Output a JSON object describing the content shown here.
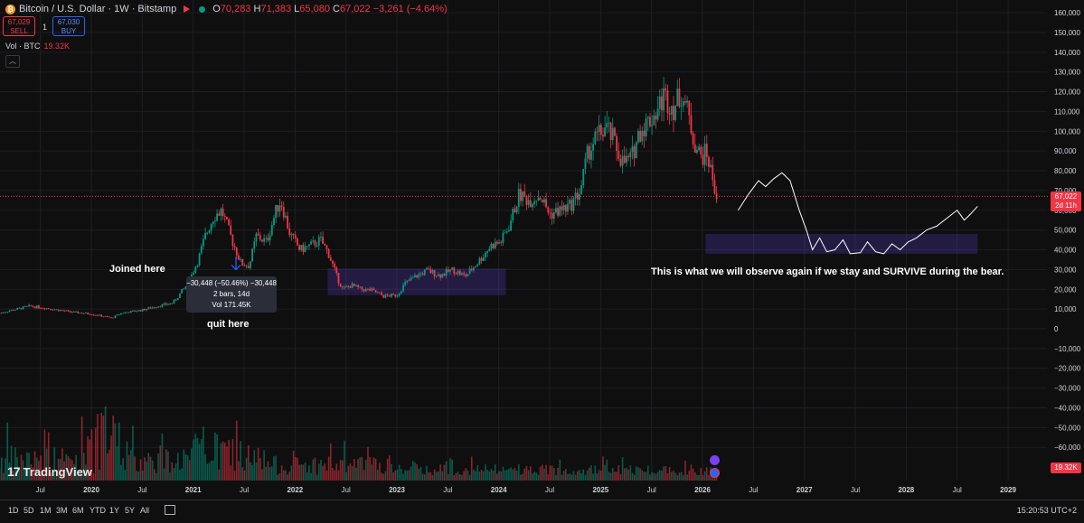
{
  "header": {
    "symbol_title": "Bitcoin / U.S. Dollar · 1W · Bitstamp",
    "open_label": "O",
    "open": "70,283",
    "high_label": "H",
    "high": "71,383",
    "low_label": "L",
    "low": "65,080",
    "close_label": "C",
    "close": "67,022",
    "change": "−3,261 (−4.64%)"
  },
  "trade": {
    "sell_price": "67,029",
    "sell_label": "SELL",
    "spread": "1",
    "buy_price": "67,030",
    "buy_label": "BUY"
  },
  "volume_legend": {
    "label": "Vol · BTC",
    "value": "19.32K"
  },
  "annotations": {
    "joined": "Joined here",
    "quit": "quit here",
    "observe": "This is what we will observe again if we stay and SURVIVE during the bear."
  },
  "measure_tooltip": {
    "line1": "−30,448 (−50.46%) −30,448",
    "line2": "2 bars, 14d",
    "line3": "Vol 171.45K"
  },
  "price_tag": {
    "price": "67,022",
    "countdown": "2d 11h"
  },
  "volume_tag": "19.32K",
  "brand": "TradingView",
  "bottom_bar": {
    "timeframes": [
      "1D",
      "5D",
      "1M",
      "3M",
      "6M",
      "YTD",
      "1Y",
      "5Y",
      "All"
    ],
    "clock": "15:20:53 UTC+2"
  },
  "colors": {
    "up": "#089981",
    "down": "#f23645",
    "accent": "#2962ff",
    "background": "#0f0f0f"
  },
  "chart_data": {
    "type": "candlestick",
    "interval": "1W",
    "ylim": [
      -70000,
      165000
    ],
    "y_ticks": [
      160000,
      150000,
      140000,
      130000,
      120000,
      110000,
      100000,
      90000,
      80000,
      70000,
      60000,
      50000,
      40000,
      30000,
      20000,
      10000,
      0,
      -10000,
      -20000,
      -30000,
      -40000,
      -50000,
      -60000
    ],
    "y_tick_labels": [
      "160,000",
      "150,000",
      "140,000",
      "130,000",
      "120,000",
      "110,000",
      "100,000",
      "90,000",
      "80,000",
      "70,000",
      "60,000",
      "50,000",
      "40,000",
      "30,000",
      "20,000",
      "10,000",
      "0",
      "−10,000",
      "−20,000",
      "−30,000",
      "−40,000",
      "−50,000",
      "−60,000"
    ],
    "x_ticks": [
      2019.5,
      2020,
      2020.5,
      2021,
      2021.5,
      2022,
      2022.5,
      2023,
      2023.5,
      2024,
      2024.5,
      2025,
      2025.5,
      2026,
      2026.5,
      2027,
      2027.5,
      2028,
      2028.5,
      2029
    ],
    "x_tick_labels": [
      "Jul",
      "2020",
      "Jul",
      "2021",
      "Jul",
      "2022",
      "Jul",
      "2023",
      "Jul",
      "2024",
      "Jul",
      "2025",
      "Jul",
      "2026",
      "Jul",
      "2027",
      "Jul",
      "2028",
      "Jul",
      "2029"
    ],
    "xlim": [
      2019.1,
      2029.6
    ],
    "grid": true,
    "price_path": [
      [
        2019.1,
        8000
      ],
      [
        2019.4,
        11500
      ],
      [
        2019.55,
        10500
      ],
      [
        2019.8,
        8500
      ],
      [
        2020.0,
        7500
      ],
      [
        2020.2,
        5500
      ],
      [
        2020.3,
        8000
      ],
      [
        2020.5,
        9500
      ],
      [
        2020.65,
        11500
      ],
      [
        2020.8,
        13000
      ],
      [
        2020.95,
        23000
      ],
      [
        2021.05,
        35000
      ],
      [
        2021.12,
        47000
      ],
      [
        2021.2,
        57000
      ],
      [
        2021.28,
        60000
      ],
      [
        2021.38,
        45000
      ],
      [
        2021.47,
        33000
      ],
      [
        2021.55,
        32000
      ],
      [
        2021.62,
        47000
      ],
      [
        2021.72,
        44000
      ],
      [
        2021.82,
        61000
      ],
      [
        2021.86,
        65000
      ],
      [
        2021.95,
        48000
      ],
      [
        2022.05,
        40000
      ],
      [
        2022.15,
        42000
      ],
      [
        2022.25,
        45000
      ],
      [
        2022.33,
        38000
      ],
      [
        2022.42,
        25000
      ],
      [
        2022.47,
        20000
      ],
      [
        2022.55,
        22000
      ],
      [
        2022.65,
        20000
      ],
      [
        2022.75,
        19500
      ],
      [
        2022.87,
        16500
      ],
      [
        2023.0,
        17000
      ],
      [
        2023.08,
        23000
      ],
      [
        2023.2,
        27000
      ],
      [
        2023.3,
        29500
      ],
      [
        2023.42,
        27000
      ],
      [
        2023.55,
        30000
      ],
      [
        2023.67,
        26500
      ],
      [
        2023.8,
        34000
      ],
      [
        2023.92,
        42000
      ],
      [
        2024.02,
        44000
      ],
      [
        2024.1,
        52000
      ],
      [
        2024.2,
        68000
      ],
      [
        2024.3,
        65000
      ],
      [
        2024.4,
        68000
      ],
      [
        2024.5,
        58000
      ],
      [
        2024.6,
        60000
      ],
      [
        2024.7,
        62000
      ],
      [
        2024.8,
        70000
      ],
      [
        2024.88,
        90000
      ],
      [
        2024.95,
        96000
      ],
      [
        2025.05,
        102000
      ],
      [
        2025.12,
        96000
      ],
      [
        2025.22,
        84000
      ],
      [
        2025.3,
        86000
      ],
      [
        2025.38,
        100000
      ],
      [
        2025.47,
        105000
      ],
      [
        2025.55,
        110000
      ],
      [
        2025.62,
        118000
      ],
      [
        2025.72,
        112000
      ],
      [
        2025.8,
        120000
      ],
      [
        2025.85,
        110000
      ],
      [
        2025.92,
        95000
      ],
      [
        2025.98,
        87000
      ],
      [
        2026.04,
        89000
      ],
      [
        2026.1,
        76000
      ],
      [
        2026.14,
        67022
      ]
    ],
    "volume_series": {
      "name": "Vol · BTC",
      "last": 19320
    }
  },
  "drawings": {
    "joined_point": [
      2020.95,
      24000
    ],
    "quit_point": [
      2021.42,
      30000
    ],
    "boxes": [
      {
        "x0": 2022.32,
        "x1": 2024.07,
        "y0": 17000,
        "y1": 30500
      },
      {
        "x0": 2026.03,
        "x1": 2028.7,
        "y0": 38000,
        "y1": 48000
      }
    ],
    "projection": [
      [
        2026.35,
        60000
      ],
      [
        2026.45,
        68000
      ],
      [
        2026.55,
        75000
      ],
      [
        2026.62,
        72000
      ],
      [
        2026.7,
        76000
      ],
      [
        2026.78,
        79000
      ],
      [
        2026.86,
        75000
      ],
      [
        2026.95,
        60000
      ],
      [
        2027.02,
        50000
      ],
      [
        2027.08,
        40000
      ],
      [
        2027.15,
        46000
      ],
      [
        2027.22,
        39000
      ],
      [
        2027.3,
        40000
      ],
      [
        2027.38,
        45000
      ],
      [
        2027.45,
        38000
      ],
      [
        2027.55,
        38500
      ],
      [
        2027.62,
        44000
      ],
      [
        2027.7,
        39000
      ],
      [
        2027.78,
        38000
      ],
      [
        2027.86,
        43000
      ],
      [
        2027.94,
        40000
      ],
      [
        2028.02,
        44000
      ],
      [
        2028.1,
        46000
      ],
      [
        2028.2,
        50000
      ],
      [
        2028.3,
        52000
      ],
      [
        2028.4,
        56000
      ],
      [
        2028.5,
        60000
      ],
      [
        2028.57,
        55000
      ],
      [
        2028.63,
        58000
      ],
      [
        2028.7,
        62000
      ]
    ]
  }
}
